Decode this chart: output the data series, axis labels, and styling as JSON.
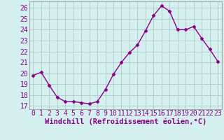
{
  "x": [
    0,
    1,
    2,
    3,
    4,
    5,
    6,
    7,
    8,
    9,
    10,
    11,
    12,
    13,
    14,
    15,
    16,
    17,
    18,
    19,
    20,
    21,
    22,
    23
  ],
  "y": [
    19.8,
    20.1,
    18.9,
    17.8,
    17.4,
    17.4,
    17.3,
    17.2,
    17.4,
    18.5,
    19.9,
    21.0,
    21.9,
    22.6,
    23.9,
    25.3,
    26.2,
    25.7,
    24.0,
    24.0,
    24.3,
    23.2,
    22.2,
    21.1
  ],
  "x_ticks": [
    0,
    1,
    2,
    3,
    4,
    5,
    6,
    7,
    8,
    9,
    10,
    11,
    12,
    13,
    14,
    15,
    16,
    17,
    18,
    19,
    20,
    21,
    22,
    23
  ],
  "y_ticks": [
    17,
    18,
    19,
    20,
    21,
    22,
    23,
    24,
    25,
    26
  ],
  "ylim": [
    16.7,
    26.6
  ],
  "xlim": [
    -0.5,
    23.5
  ],
  "xlabel": "Windchill (Refroidissement éolien,°C)",
  "line_color": "#880088",
  "marker": "D",
  "marker_size": 2.5,
  "bg_color": "#d3f0ee",
  "grid_color": "#b0c8c8",
  "xlabel_fontsize": 7.5,
  "tick_fontsize": 7.0,
  "linewidth": 1.0
}
